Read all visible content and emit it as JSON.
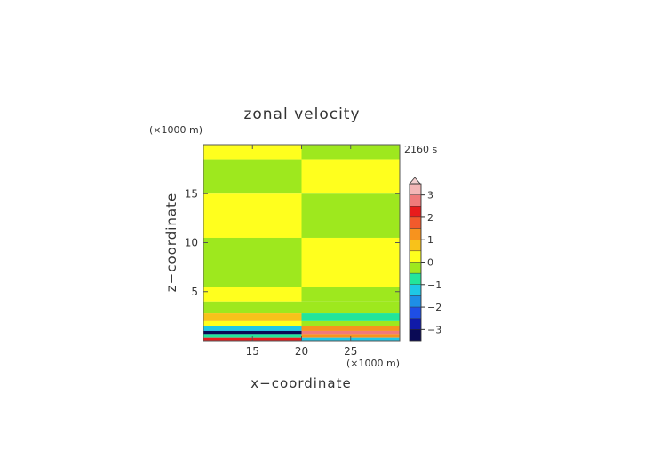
{
  "chart_data": {
    "type": "heatmap",
    "title": "zonal velocity",
    "time_label": "2160 s",
    "xlabel": "x−coordinate",
    "ylabel": "z−coordinate",
    "x_unit": "(×1000 m)",
    "y_unit": "(×1000 m)",
    "xlim": [
      10,
      30
    ],
    "ylim": [
      0,
      20
    ],
    "x_ticks": [
      15,
      20,
      25
    ],
    "y_ticks": [
      5,
      10,
      15
    ],
    "colorbar": {
      "tick_values": [
        3,
        2,
        1,
        0,
        -1,
        -2,
        -3
      ],
      "tick_labels": [
        "3",
        "2",
        "1",
        "0",
        "−1",
        "−2",
        "−3"
      ],
      "levels": [
        {
          "min": 3.0,
          "color": "#f4b6b6"
        },
        {
          "min": 2.5,
          "color": "#f07a7a"
        },
        {
          "min": 2.0,
          "color": "#e81c1c"
        },
        {
          "min": 1.5,
          "color": "#f25a2c"
        },
        {
          "min": 1.0,
          "color": "#f7931e"
        },
        {
          "min": 0.5,
          "color": "#f8c21a"
        },
        {
          "min": 0.0,
          "color": "#ffff1e"
        },
        {
          "min": -0.5,
          "color": "#9ee81e"
        },
        {
          "min": -1.0,
          "color": "#22e59b"
        },
        {
          "min": -1.5,
          "color": "#1ec8e6"
        },
        {
          "min": -2.0,
          "color": "#1e8ee6"
        },
        {
          "min": -2.5,
          "color": "#1e4ee6"
        },
        {
          "min": -3.0,
          "color": "#101aa8"
        },
        {
          "min": -3.5,
          "color": "#0a0a55"
        }
      ]
    },
    "field_bands": [
      {
        "z": [
          18.5,
          20
        ],
        "left": 0.2,
        "right": -0.3
      },
      {
        "z": [
          15,
          18.5
        ],
        "left": -0.2,
        "right": 0.3
      },
      {
        "z": [
          10.5,
          15
        ],
        "left": 0.3,
        "right": -0.3
      },
      {
        "z": [
          5.5,
          10.5
        ],
        "left": -0.3,
        "right": 0.3
      },
      {
        "z": [
          4,
          5.5
        ],
        "left": 0.2,
        "right": -0.2
      },
      {
        "z": [
          2.8,
          4
        ],
        "left": -0.3,
        "right": -0.3
      },
      {
        "z": [
          2.0,
          2.8
        ],
        "left": 0.7,
        "right": -1.0
      },
      {
        "z": [
          1.5,
          2.0
        ],
        "left": 0.2,
        "right": -0.3
      },
      {
        "z": [
          1.0,
          1.5
        ],
        "left": -1.2,
        "right": 1.2
      },
      {
        "z": [
          0.6,
          1.0
        ],
        "left": -3.2,
        "right": 2.8
      },
      {
        "z": [
          0.3,
          0.6
        ],
        "left": -1.0,
        "right": 1.0
      },
      {
        "z": [
          0,
          0.3
        ],
        "left": 2.2,
        "right": -1.5
      }
    ]
  }
}
